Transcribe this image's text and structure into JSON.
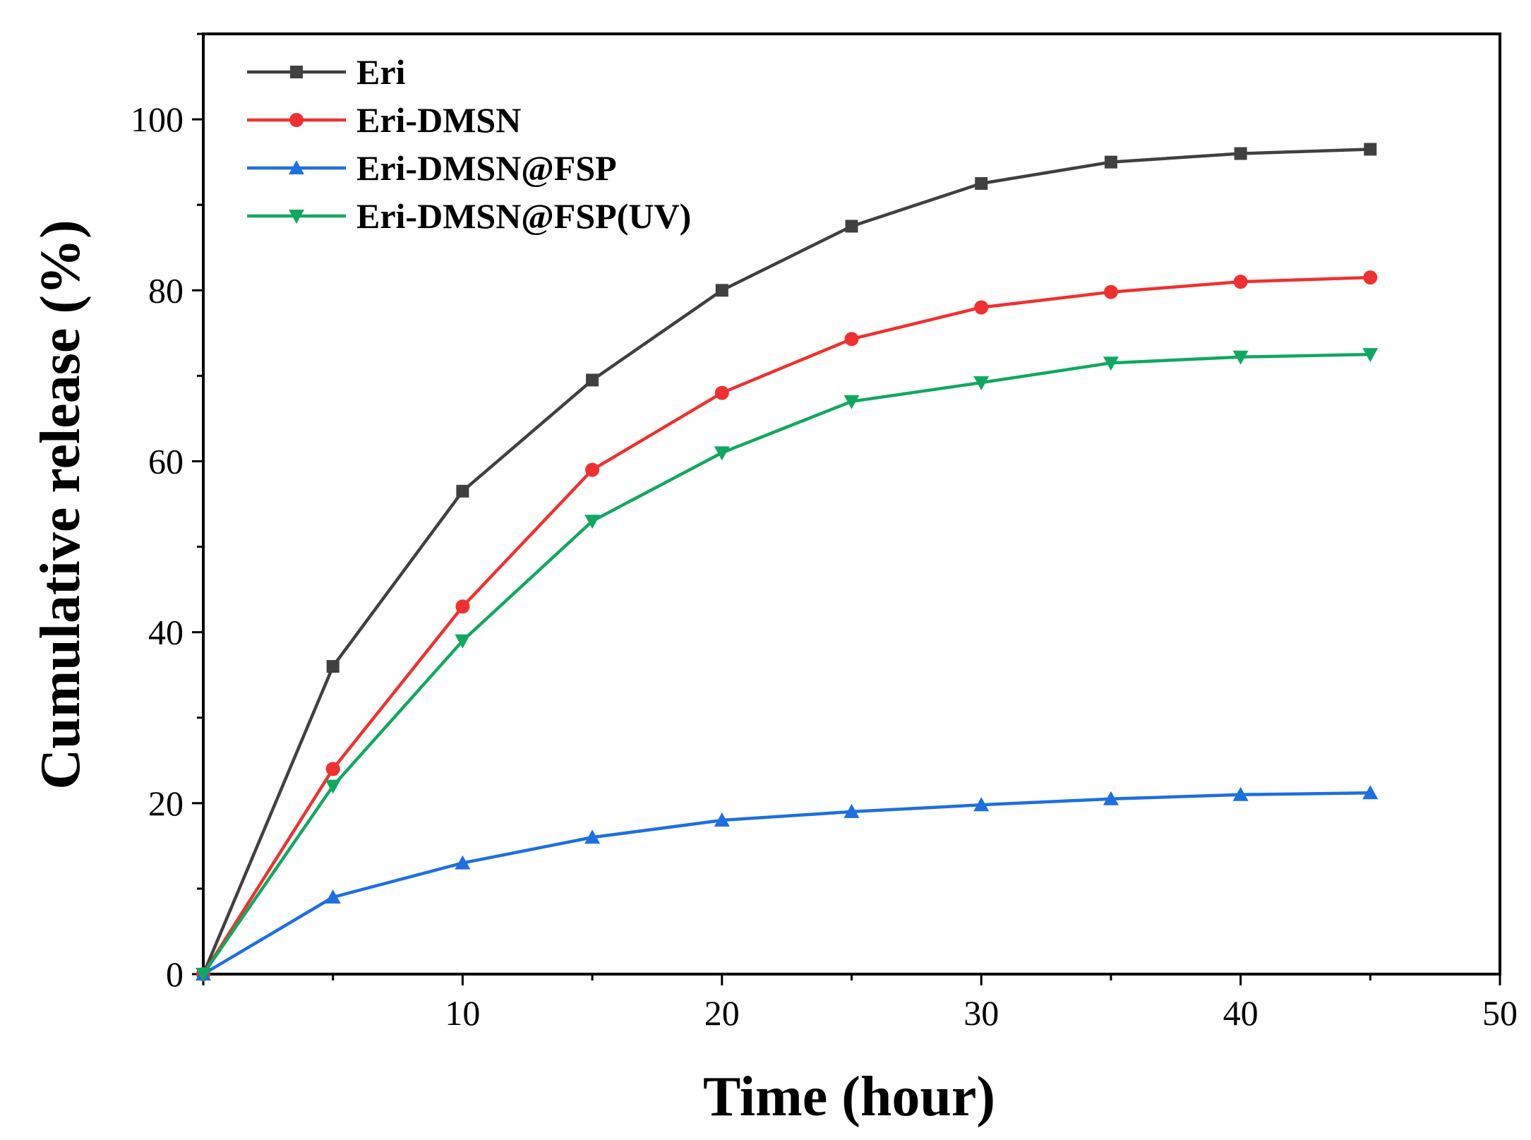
{
  "chart_data": {
    "type": "line",
    "title": "",
    "xlabel": "Time (hour)",
    "ylabel": "Cumulative release (%)",
    "xlim": [
      0,
      50
    ],
    "ylim": [
      0,
      110
    ],
    "xticks": [
      10,
      20,
      30,
      40,
      50
    ],
    "yticks": [
      0,
      20,
      40,
      60,
      80,
      100
    ],
    "grid": false,
    "legend_position": "top-left",
    "x": [
      0,
      5,
      10,
      15,
      20,
      25,
      30,
      35,
      40,
      45
    ],
    "series": [
      {
        "name": "Eri",
        "color": "#404040",
        "marker": "square",
        "values": [
          0,
          36,
          56.5,
          69.5,
          80,
          87.5,
          92.5,
          95,
          96,
          96.5
        ]
      },
      {
        "name": "Eri-DMSN",
        "color": "#f03030",
        "marker": "circle",
        "values": [
          0,
          24,
          43,
          59,
          68,
          74.3,
          78,
          79.8,
          81,
          81.5
        ]
      },
      {
        "name": "Eri-DMSN@FSP",
        "color": "#1e6fe0",
        "marker": "triangle-up",
        "values": [
          0,
          9,
          13,
          16,
          18,
          19,
          19.8,
          20.5,
          21,
          21.2
        ]
      },
      {
        "name": "Eri-DMSN@FSP(UV)",
        "color": "#10a860",
        "marker": "triangle-down",
        "values": [
          0,
          22,
          39,
          53,
          61,
          67,
          69.2,
          71.5,
          72.2,
          72.5
        ]
      }
    ]
  }
}
